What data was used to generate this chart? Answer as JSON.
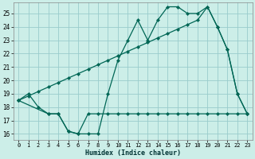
{
  "xlabel": "Humidex (Indice chaleur)",
  "bg_color": "#cceee8",
  "grid_color": "#99cccc",
  "line_color": "#006655",
  "ylim": [
    15.55,
    25.8
  ],
  "xlim": [
    -0.5,
    23.5
  ],
  "yticks": [
    16,
    17,
    18,
    19,
    20,
    21,
    22,
    23,
    24,
    25
  ],
  "xticks": [
    0,
    1,
    2,
    3,
    4,
    5,
    6,
    7,
    8,
    9,
    10,
    11,
    12,
    13,
    14,
    15,
    16,
    17,
    18,
    19,
    20,
    21,
    22,
    23
  ],
  "line1_x": [
    0,
    1,
    2,
    3,
    4,
    5,
    6,
    7,
    8,
    9,
    10,
    11,
    12,
    13,
    14,
    15,
    16,
    17,
    18,
    19,
    20,
    21,
    22,
    23
  ],
  "line1_y": [
    18.5,
    19.0,
    18.0,
    17.5,
    17.5,
    16.2,
    16.0,
    16.0,
    16.0,
    19.0,
    21.5,
    23.0,
    24.5,
    23.0,
    24.5,
    25.5,
    25.5,
    25.0,
    25.0,
    25.5,
    24.0,
    22.3,
    19.0,
    17.5
  ],
  "line2_x": [
    0,
    3,
    4,
    5,
    6,
    7,
    8,
    9,
    10,
    11,
    12,
    13,
    14,
    15,
    16,
    17,
    18,
    19,
    20,
    21,
    22,
    23
  ],
  "line2_y": [
    18.5,
    17.5,
    17.5,
    16.2,
    16.0,
    17.5,
    17.5,
    17.5,
    17.5,
    17.5,
    17.5,
    17.5,
    17.5,
    17.5,
    17.5,
    17.5,
    17.5,
    17.5,
    17.5,
    17.5,
    17.5,
    17.5
  ],
  "line3_x": [
    0,
    1,
    2,
    3,
    4,
    5,
    6,
    7,
    8,
    9,
    10,
    11,
    12,
    13,
    14,
    15,
    16,
    17,
    18,
    19,
    20,
    21,
    22,
    23
  ],
  "line3_y": [
    18.5,
    18.83,
    19.17,
    19.5,
    19.83,
    20.17,
    20.5,
    20.83,
    21.17,
    21.5,
    21.83,
    22.17,
    22.5,
    22.83,
    23.17,
    23.5,
    23.83,
    24.17,
    24.5,
    25.5,
    24.0,
    22.3,
    19.0,
    17.5
  ]
}
